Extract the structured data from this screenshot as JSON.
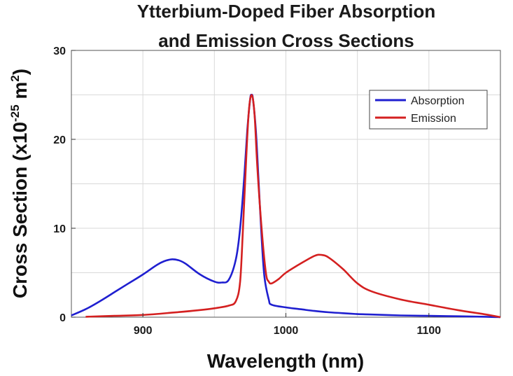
{
  "chart_data": {
    "type": "line",
    "title": [
      "Ytterbium-Doped Fiber Absorption",
      "and Emission Cross Sections"
    ],
    "xlabel": "Wavelength (nm)",
    "ylabel": {
      "main": "Cross Section (x10",
      "exponent": "-25",
      "unit": " m",
      "unit_exponent": "2",
      "close": ")"
    },
    "xlim": [
      850,
      1150
    ],
    "ylim": [
      0,
      30
    ],
    "x_ticks": [
      900,
      1000,
      1100
    ],
    "y_ticks": [
      0,
      10,
      20,
      30
    ],
    "grid": true,
    "legend_position": "top-right",
    "series": [
      {
        "name": "Absorption",
        "color": "#1f1fd0",
        "points": [
          [
            850,
            0.2
          ],
          [
            860,
            0.9
          ],
          [
            870,
            1.8
          ],
          [
            880,
            2.8
          ],
          [
            890,
            3.8
          ],
          [
            900,
            4.8
          ],
          [
            910,
            5.9
          ],
          [
            915,
            6.3
          ],
          [
            920,
            6.5
          ],
          [
            925,
            6.4
          ],
          [
            930,
            6.0
          ],
          [
            940,
            4.8
          ],
          [
            950,
            4.0
          ],
          [
            955,
            3.9
          ],
          [
            960,
            4.2
          ],
          [
            965,
            6.5
          ],
          [
            968,
            10.0
          ],
          [
            971,
            16.0
          ],
          [
            973,
            21.0
          ],
          [
            975,
            24.5
          ],
          [
            976,
            25.0
          ],
          [
            977,
            24.5
          ],
          [
            979,
            21.0
          ],
          [
            981,
            15.0
          ],
          [
            983,
            9.0
          ],
          [
            985,
            4.5
          ],
          [
            988,
            2.0
          ],
          [
            990,
            1.4
          ],
          [
            1000,
            1.1
          ],
          [
            1010,
            0.9
          ],
          [
            1020,
            0.7
          ],
          [
            1030,
            0.55
          ],
          [
            1040,
            0.45
          ],
          [
            1050,
            0.35
          ],
          [
            1060,
            0.3
          ],
          [
            1080,
            0.2
          ],
          [
            1100,
            0.15
          ],
          [
            1120,
            0.1
          ],
          [
            1140,
            0.05
          ],
          [
            1150,
            0.0
          ]
        ]
      },
      {
        "name": "Emission",
        "color": "#d42020",
        "points": [
          [
            860,
            0.05
          ],
          [
            880,
            0.15
          ],
          [
            900,
            0.25
          ],
          [
            920,
            0.5
          ],
          [
            940,
            0.8
          ],
          [
            950,
            1.0
          ],
          [
            960,
            1.3
          ],
          [
            965,
            1.8
          ],
          [
            968,
            4.0
          ],
          [
            970,
            10.0
          ],
          [
            972,
            17.0
          ],
          [
            974,
            23.0
          ],
          [
            976,
            25.0
          ],
          [
            978,
            23.0
          ],
          [
            980,
            17.0
          ],
          [
            983,
            10.0
          ],
          [
            986,
            5.0
          ],
          [
            988,
            4.0
          ],
          [
            990,
            3.8
          ],
          [
            995,
            4.3
          ],
          [
            1000,
            5.0
          ],
          [
            1010,
            6.0
          ],
          [
            1020,
            6.9
          ],
          [
            1025,
            7.0
          ],
          [
            1030,
            6.7
          ],
          [
            1040,
            5.4
          ],
          [
            1050,
            3.8
          ],
          [
            1060,
            2.9
          ],
          [
            1080,
            2.0
          ],
          [
            1100,
            1.4
          ],
          [
            1120,
            0.8
          ],
          [
            1140,
            0.3
          ],
          [
            1150,
            0.0
          ]
        ]
      }
    ]
  }
}
